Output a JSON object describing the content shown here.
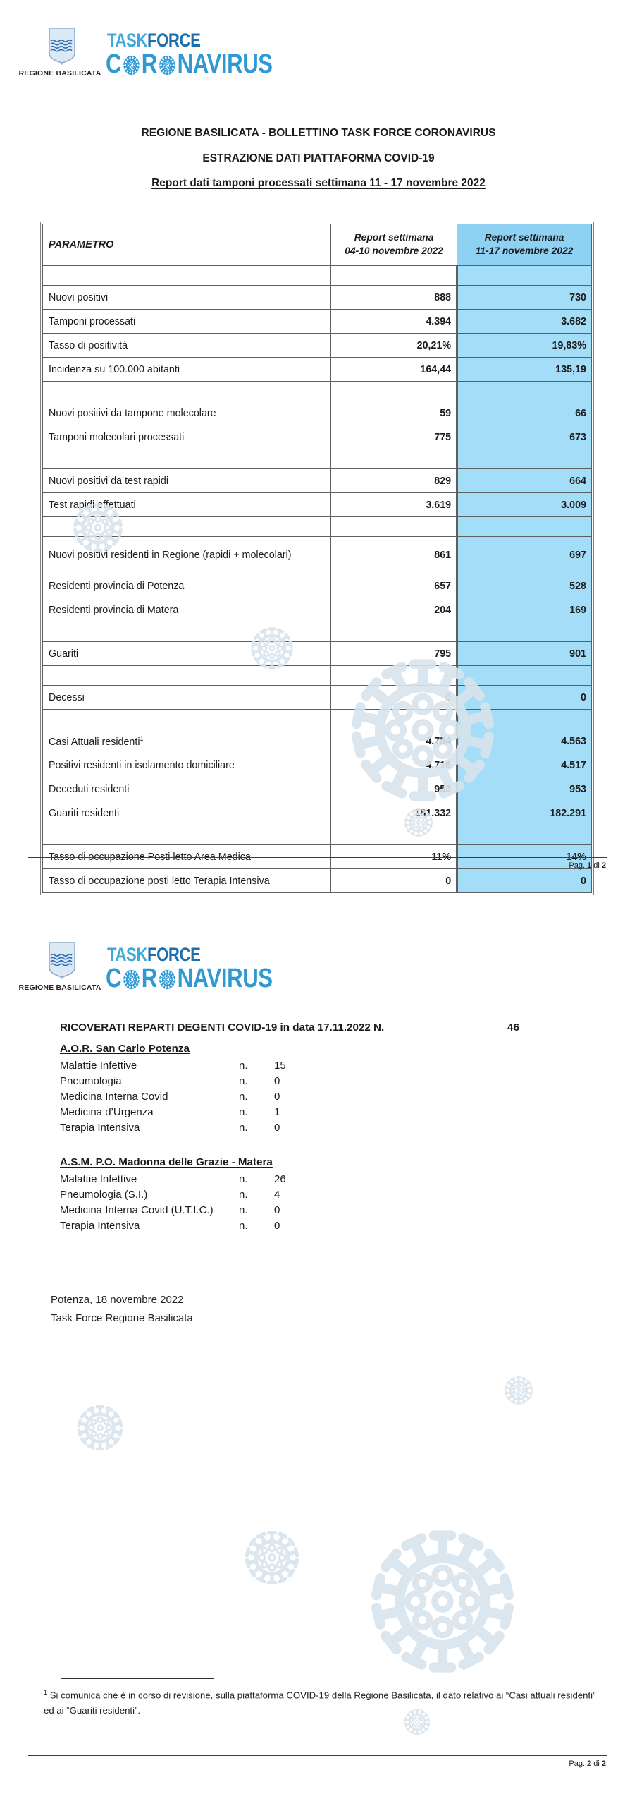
{
  "brand": {
    "region_label": "REGIONE BASILICATA",
    "task": "TASK",
    "force": "FORCE",
    "corona_c": "C",
    "corona_r": "R",
    "corona_rest": "NAVIRUS",
    "colors": {
      "task": "#3fa9dc",
      "force": "#1c6fad",
      "corona": "#2f99d4",
      "watermark": "#d9e4ec"
    }
  },
  "page1": {
    "title_line1": "REGIONE BASILICATA - BOLLETTINO TASK FORCE CORONAVIRUS",
    "title_line2": "ESTRAZIONE DATI PIATTAFORMA COVID-19",
    "title_line3": "Report dati tamponi processati settimana 11 - 17 novembre 2022",
    "table": {
      "highlight_color": "#a4ddf7",
      "header_highlight_color": "#8ed1f3",
      "header": {
        "param": "PARAMETRO",
        "col_prev": [
          "Report settimana",
          "04-10 novembre 2022"
        ],
        "col_curr": [
          "Report settimana",
          "11-17 novembre 2022"
        ]
      },
      "rows": [
        {
          "type": "spacer"
        },
        {
          "label": "Nuovi positivi",
          "prev": "888",
          "curr": "730"
        },
        {
          "label": "Tamponi processati",
          "prev": "4.394",
          "curr": "3.682"
        },
        {
          "label": "Tasso di positività",
          "prev": "20,21%",
          "curr": "19,83%"
        },
        {
          "label": "Incidenza su 100.000 abitanti",
          "prev": "164,44",
          "curr": "135,19"
        },
        {
          "type": "spacer"
        },
        {
          "label": "Nuovi positivi da tampone molecolare",
          "prev": "59",
          "curr": "66"
        },
        {
          "label": "Tamponi molecolari processati",
          "prev": "775",
          "curr": "673"
        },
        {
          "type": "spacer"
        },
        {
          "label": "Nuovi positivi da test rapidi",
          "prev": "829",
          "curr": "664"
        },
        {
          "label": "Test rapidi effettuati",
          "prev": "3.619",
          "curr": "3.009"
        },
        {
          "type": "spacer"
        },
        {
          "label": "Nuovi positivi residenti in Regione (rapidi + molecolari)",
          "prev": "861",
          "curr": "697",
          "tall": true
        },
        {
          "label": "Residenti provincia di Potenza",
          "prev": "657",
          "curr": "528"
        },
        {
          "label": "Residenti provincia di Matera",
          "prev": "204",
          "curr": "169"
        },
        {
          "type": "spacer"
        },
        {
          "label": "Guariti",
          "prev": "795",
          "curr": "901"
        },
        {
          "type": "spacer"
        },
        {
          "label": "Decessi",
          "prev": "0",
          "curr": "0"
        },
        {
          "type": "spacer"
        },
        {
          "label": "Casi Attuali residenti",
          "sup": "1",
          "prev": "4.754",
          "curr": "4.563"
        },
        {
          "label": "Positivi residenti in isolamento domiciliare",
          "prev": "4.716",
          "curr": "4.517"
        },
        {
          "label": "Deceduti residenti",
          "prev": "953",
          "curr": "953"
        },
        {
          "label": "Guariti residenti",
          "prev": "181.332",
          "curr": "182.291"
        },
        {
          "type": "spacer"
        },
        {
          "label": "Tasso di occupazione Posti letto Area Medica",
          "prev": "11%",
          "curr": "14%"
        },
        {
          "label": "Tasso di occupazione posti letto Terapia Intensiva",
          "prev": "0",
          "curr": "0"
        }
      ]
    },
    "footer": {
      "prefix": "Pag.",
      "num": "1",
      "of": "di",
      "total": "2"
    }
  },
  "page2": {
    "heading": {
      "label": "RICOVERATI REPARTI DEGENTI COVID-19 in data 17.11.2022 N.",
      "value": "46"
    },
    "sections": [
      {
        "title": "A.O.R. San Carlo Potenza",
        "rows": [
          {
            "label": "Malattie Infettive",
            "n": "n.",
            "value": "15"
          },
          {
            "label": "Pneumologia",
            "n": "n.",
            "value": "0"
          },
          {
            "label": "Medicina Interna Covid",
            "n": "n.",
            "value": "0"
          },
          {
            "label": "Medicina d’Urgenza",
            "n": "n.",
            "value": "1"
          },
          {
            "label": "Terapia Intensiva",
            "n": "n.",
            "value": "0"
          }
        ]
      },
      {
        "title": "A.S.M. P.O. Madonna delle Grazie - Matera",
        "rows": [
          {
            "label": "Malattie Infettive",
            "n": "n.",
            "value": "26"
          },
          {
            "label": "Pneumologia (S.I.)",
            "n": "n.",
            "value": "4"
          },
          {
            "label": "Medicina Interna Covid (U.T.I.C.)",
            "n": "n.",
            "value": "0"
          },
          {
            "label": "Terapia Intensiva",
            "n": "n.",
            "value": "0"
          }
        ]
      }
    ],
    "signature": [
      "Potenza, 18 novembre 2022",
      "Task Force Regione Basilicata"
    ],
    "footnote": {
      "sup": "1",
      "text": "Si comunica che è in corso di revisione, sulla piattaforma COVID-19 della Regione Basilicata, il dato relativo ai “Casi attuali residenti” ed ai “Guariti residenti”."
    },
    "footer": {
      "prefix": "Pag.",
      "num": "2",
      "of": "di",
      "total": "2"
    }
  }
}
